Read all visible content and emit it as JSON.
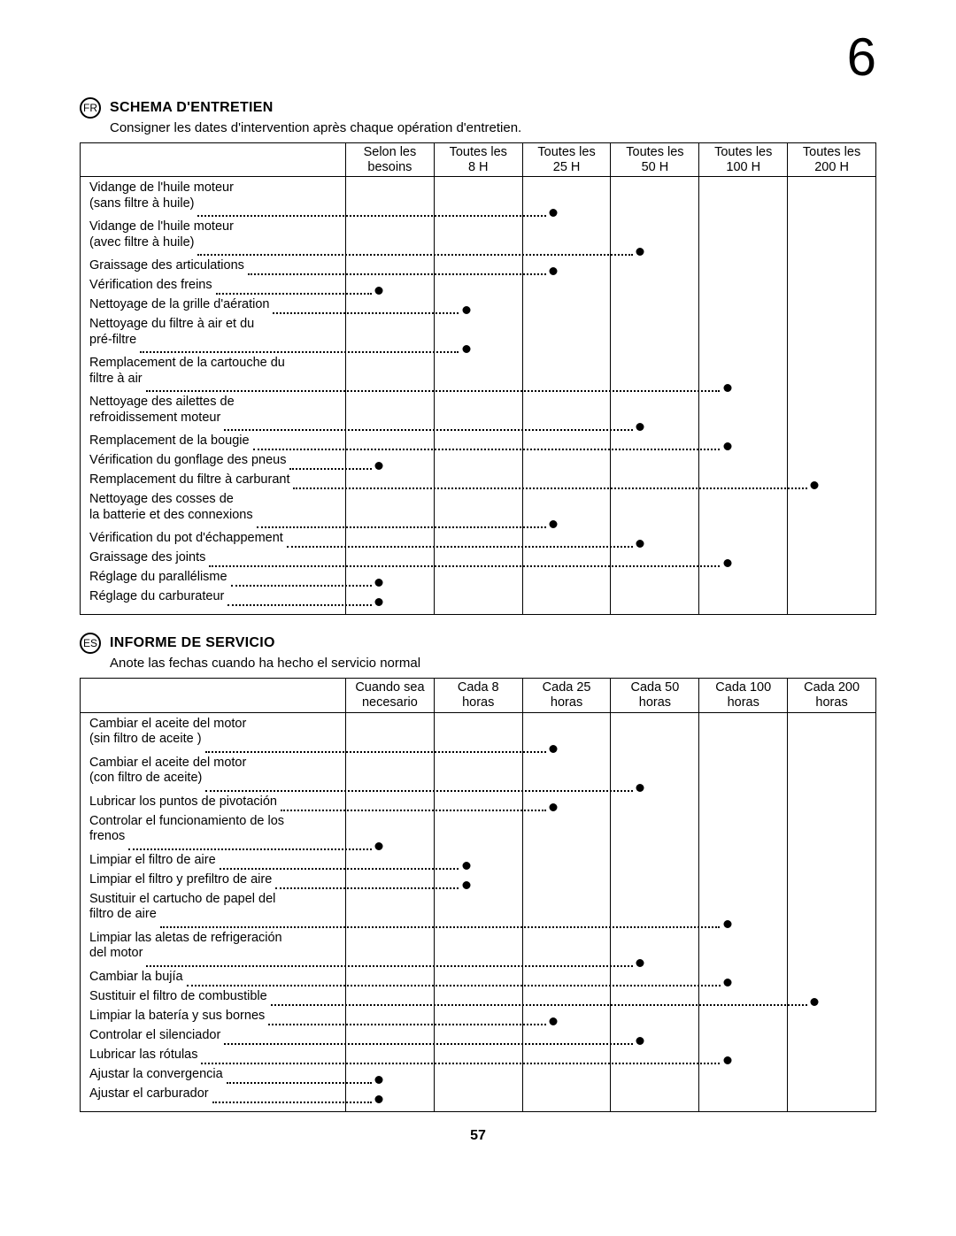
{
  "page_corner": "6",
  "page_footer": "57",
  "layout": {
    "table_inner_width": 878,
    "desc_col_width": 288,
    "interval_cols": 6,
    "font_size_body": 14.5,
    "font_size_title": 16,
    "dot_color": "#000000",
    "border_color": "#000000",
    "background_color": "#ffffff"
  },
  "sections": [
    {
      "lang_code": "FR",
      "title": "SCHEMA D'ENTRETIEN",
      "subtitle": "Consigner les dates d'intervention après chaque opération d'entretien.",
      "headers": [
        "Selon les besoins",
        "Toutes les 8 H",
        "Toutes les 25 H",
        "Toutes les 50 H",
        "Toutes les 100 H",
        "Toutes les 200 H"
      ],
      "rows": [
        {
          "l1": "Vidange de l'huile moteur",
          "l2": "(sans filtre à huile)",
          "mark": 2
        },
        {
          "l1": "Vidange de l'huile moteur",
          "l2": "(avec filtre à huile)",
          "mark": 3
        },
        {
          "l1": "Graissage des articulations",
          "mark": 2
        },
        {
          "l1": "Vérification des freins",
          "mark": 0
        },
        {
          "l1": "Nettoyage de la grille d'aération",
          "mark": 1
        },
        {
          "l1": "Nettoyage du filtre à air et du",
          "l2": "pré-filtre",
          "mark": 1
        },
        {
          "l1": "Remplacement de la cartouche du",
          "l2": "filtre à air",
          "mark": 4
        },
        {
          "l1": "Nettoyage des ailettes de",
          "l2": "refroidissement moteur",
          "mark": 3
        },
        {
          "l1": "Remplacement de la bougie",
          "mark": 4
        },
        {
          "l1": "Vérification du gonflage des pneus",
          "mark": 0
        },
        {
          "l1": "Remplacement du filtre à carburant",
          "mark": 5
        },
        {
          "l1": "Nettoyage des cosses de",
          "l2": "la batterie et des connexions",
          "mark": 2
        },
        {
          "l1": "Vérification du pot d'échappement",
          "mark": 3
        },
        {
          "l1": "Graissage des joints",
          "mark": 4
        },
        {
          "l1": "Réglage du parallélisme",
          "mark": 0
        },
        {
          "l1": "Réglage du carburateur",
          "mark": 0
        }
      ]
    },
    {
      "lang_code": "ES",
      "title": "INFORME DE SERVICIO",
      "subtitle": "Anote las fechas cuando ha hecho el servicio normal",
      "headers": [
        "Cuando sea necesario",
        "Cada 8 horas",
        "Cada 25 horas",
        "Cada 50 horas",
        "Cada 100 horas",
        "Cada 200 horas"
      ],
      "rows": [
        {
          "l1": "Cambiar el aceite del motor",
          "l2": "(sin filtro de aceite )",
          "mark": 2
        },
        {
          "l1": "Cambiar el aceite del motor",
          "l2": "(con filtro de aceite)",
          "mark": 3
        },
        {
          "l1": "Lubricar los puntos de pivotación",
          "mark": 2
        },
        {
          "l1": "Controlar el funcionamiento de los",
          "l2": "frenos",
          "mark": 0
        },
        {
          "l1": "Limpiar el filtro de aire",
          "mark": 1
        },
        {
          "l1": "Limpiar el filtro y prefiltro de aire",
          "mark": 1
        },
        {
          "l1": "Sustituir el cartucho de papel del",
          "l2": "filtro de aire",
          "mark": 4
        },
        {
          "l1": "Limpiar las aletas de refrigeración",
          "l2": "del motor",
          "mark": 3
        },
        {
          "l1": "Cambiar la bujía",
          "mark": 4
        },
        {
          "l1": "Sustituir el filtro de combustible",
          "mark": 5
        },
        {
          "l1": "Limpiar la batería y sus bornes",
          "mark": 2
        },
        {
          "l1": "Controlar el silenciador",
          "mark": 3
        },
        {
          "l1": "Lubricar las rótulas",
          "mark": 4
        },
        {
          "l1": "Ajustar la convergencia",
          "mark": 0
        },
        {
          "l1": "Ajustar el carburador",
          "mark": 0
        }
      ]
    }
  ]
}
